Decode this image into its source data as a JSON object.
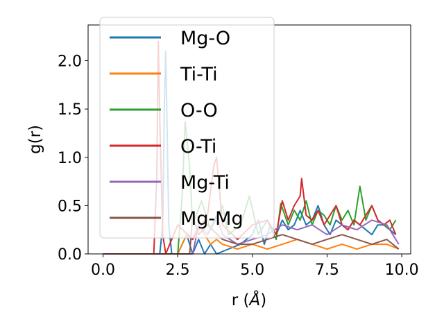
{
  "chart_data": {
    "type": "line",
    "title": "",
    "xlabel": "r ($\\AA$)",
    "xlabel_text": "r (",
    "xlabel_unit": "Å",
    "xlabel_close": ")",
    "ylabel": "g(r)",
    "xlim": [
      -0.5,
      10.3
    ],
    "ylim": [
      0,
      2.37
    ],
    "xticks": [
      0.0,
      2.5,
      5.0,
      7.5,
      10.0
    ],
    "xtick_labels": [
      "0.0",
      "2.5",
      "5.0",
      "7.5",
      "10.0"
    ],
    "yticks": [
      0.0,
      0.5,
      1.0,
      1.5,
      2.0
    ],
    "ytick_labels": [
      "0.0",
      "0.5",
      "1.0",
      "1.5",
      "2.0"
    ],
    "grid": false,
    "legend": {
      "position": "upper-left",
      "entries": [
        "Mg-O",
        "Ti-Ti",
        "O-O",
        "O-Ti",
        "Mg-Ti",
        "Mg-Mg"
      ]
    },
    "series": [
      {
        "name": "Mg-O",
        "color": "#1f77b4",
        "x": [
          0.0,
          1.9,
          2.0,
          2.05,
          2.1,
          2.15,
          2.2,
          2.3,
          2.5,
          2.8,
          3.0,
          3.2,
          3.4,
          3.6,
          3.8,
          4.2,
          4.6,
          5.0,
          5.2,
          5.4,
          5.6,
          5.8,
          6.0,
          6.2,
          6.4,
          6.6,
          6.8,
          7.0,
          7.2,
          7.4,
          7.6,
          7.8,
          8.0,
          8.2,
          8.4,
          8.6,
          8.8,
          9.0,
          9.2,
          9.4,
          9.6,
          9.8
        ],
        "y": [
          0,
          0,
          0.3,
          1.5,
          2.1,
          1.2,
          0.3,
          0,
          0,
          0.2,
          0,
          0.15,
          0,
          0.1,
          0,
          0.05,
          0.1,
          0.2,
          0.35,
          0.1,
          0.3,
          0.2,
          0.35,
          0.25,
          0.3,
          0.45,
          0.3,
          0.35,
          0.5,
          0.3,
          0.2,
          0.35,
          0.3,
          0.25,
          0.35,
          0.3,
          0.25,
          0.2,
          0.3,
          0.3,
          0.25,
          0.2
        ]
      },
      {
        "name": "Ti-Ti",
        "color": "#ff7f0e",
        "x": [
          0.0,
          2.5,
          2.8,
          3.0,
          3.2,
          3.4,
          3.6,
          3.8,
          4.0,
          4.5,
          5.0,
          5.5,
          6.0,
          6.5,
          7.0,
          7.5,
          8.0,
          8.5,
          9.0,
          9.5,
          9.9
        ],
        "y": [
          0,
          0,
          0.2,
          0.15,
          0.3,
          0.2,
          0.1,
          0.15,
          0.1,
          0.05,
          0.1,
          0.05,
          0.1,
          0.15,
          0.1,
          0.05,
          0.1,
          0.05,
          0.1,
          0.1,
          0.05
        ]
      },
      {
        "name": "O-O",
        "color": "#2ca02c",
        "x": [
          0.0,
          2.5,
          2.65,
          2.75,
          2.9,
          3.0,
          3.3,
          3.6,
          4.0,
          4.2,
          4.6,
          4.9,
          5.2,
          5.5,
          5.8,
          5.95,
          6.2,
          6.4,
          6.6,
          6.8,
          7.0,
          7.2,
          7.4,
          7.6,
          7.8,
          8.0,
          8.2,
          8.4,
          8.6,
          8.8,
          9.0,
          9.2,
          9.4,
          9.6,
          9.8
        ],
        "y": [
          0,
          0,
          0.6,
          1.37,
          0.9,
          0.3,
          0.55,
          0.25,
          0.5,
          0.2,
          0.3,
          0.6,
          0.2,
          0.35,
          0.15,
          0.52,
          0.3,
          0.45,
          0.35,
          0.55,
          0.3,
          0.45,
          0.4,
          0.3,
          0.5,
          0.35,
          0.45,
          0.3,
          0.7,
          0.35,
          0.5,
          0.35,
          0.3,
          0.25,
          0.35
        ]
      },
      {
        "name": "O-Ti",
        "color": "#d62728",
        "x": [
          0.0,
          1.7,
          1.8,
          1.85,
          1.9,
          2.0,
          2.1,
          2.5,
          3.0,
          3.3,
          3.5,
          3.7,
          3.8,
          4.0,
          4.5,
          5.0,
          5.5,
          5.8,
          6.0,
          6.2,
          6.4,
          6.6,
          6.65,
          6.8,
          7.0,
          7.2,
          7.4,
          7.6,
          7.8,
          8.0,
          8.2,
          8.4,
          8.6,
          8.8,
          9.0,
          9.2,
          9.4,
          9.6,
          9.8
        ],
        "y": [
          0,
          0,
          0.8,
          2.2,
          1.4,
          0.2,
          0,
          0.3,
          0.15,
          0.3,
          0.4,
          0.9,
          1.0,
          0.3,
          0.15,
          0.3,
          0.35,
          0.2,
          0.55,
          0.35,
          0.5,
          0.6,
          0.78,
          0.4,
          0.35,
          0.45,
          0.3,
          0.4,
          0.5,
          0.3,
          0.25,
          0.35,
          0.3,
          0.4,
          0.5,
          0.35,
          0.3,
          0.35,
          0.2
        ]
      },
      {
        "name": "Mg-Ti",
        "color": "#9467bd",
        "x": [
          0.0,
          3.0,
          3.2,
          3.5,
          3.8,
          4.0,
          4.5,
          5.0,
          5.5,
          6.0,
          6.5,
          7.0,
          7.5,
          8.0,
          8.5,
          9.0,
          9.5,
          9.9
        ],
        "y": [
          0,
          0,
          0.3,
          0.2,
          0.4,
          0.2,
          0.1,
          0.15,
          0.2,
          0.3,
          0.25,
          0.3,
          0.2,
          0.3,
          0.25,
          0.35,
          0.3,
          0.1
        ]
      },
      {
        "name": "Mg-Mg",
        "color": "#8c564b",
        "x": [
          0.0,
          2.9,
          3.0,
          3.2,
          3.5,
          4.0,
          4.5,
          5.0,
          5.5,
          6.0,
          6.5,
          7.0,
          7.5,
          8.0,
          8.5,
          9.0,
          9.5,
          9.9
        ],
        "y": [
          0,
          0,
          0.4,
          0.2,
          0.3,
          0.15,
          0.1,
          0.1,
          0.15,
          0.2,
          0.15,
          0.1,
          0.15,
          0.2,
          0.15,
          0.1,
          0.15,
          0.05
        ]
      }
    ]
  }
}
